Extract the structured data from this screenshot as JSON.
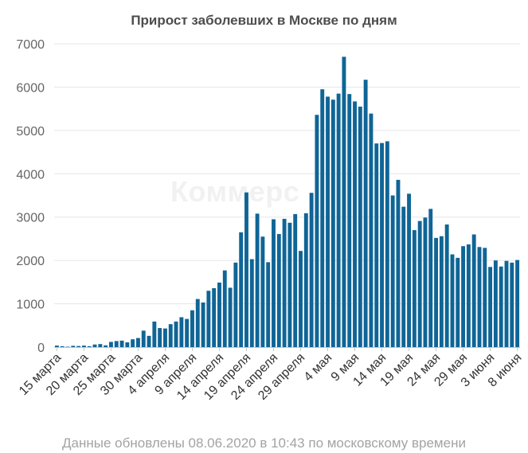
{
  "chart_data": {
    "type": "bar",
    "title": "Прирост заболевших в Москве по дням",
    "footer": "Данные обновлены 08.06.2020 в 10:43 по московскому времени",
    "watermark": "Коммерс",
    "ylim": [
      0,
      7000
    ],
    "yticks": [
      0,
      1000,
      2000,
      3000,
      4000,
      5000,
      6000,
      7000
    ],
    "grid": true,
    "bar_color": "#0f6596",
    "x_labels": [
      {
        "index": 0,
        "label": "15 марта"
      },
      {
        "index": 5,
        "label": "20 марта"
      },
      {
        "index": 10,
        "label": "25 марта"
      },
      {
        "index": 15,
        "label": "30 марта"
      },
      {
        "index": 20,
        "label": "4 апреля"
      },
      {
        "index": 25,
        "label": "9 апреля"
      },
      {
        "index": 30,
        "label": "14 апреля"
      },
      {
        "index": 35,
        "label": "19 апреля"
      },
      {
        "index": 40,
        "label": "24 апреля"
      },
      {
        "index": 45,
        "label": "29 апреля"
      },
      {
        "index": 50,
        "label": "4 мая"
      },
      {
        "index": 55,
        "label": "9 мая"
      },
      {
        "index": 60,
        "label": "14 мая"
      },
      {
        "index": 65,
        "label": "19 мая"
      },
      {
        "index": 70,
        "label": "24 мая"
      },
      {
        "index": 75,
        "label": "29 мая"
      },
      {
        "index": 80,
        "label": "3 июня"
      },
      {
        "index": 85,
        "label": "8 июня"
      }
    ],
    "values": [
      35,
      20,
      10,
      30,
      25,
      35,
      20,
      60,
      70,
      40,
      120,
      140,
      150,
      110,
      180,
      210,
      380,
      260,
      590,
      440,
      430,
      530,
      590,
      690,
      650,
      850,
      1110,
      1030,
      1300,
      1360,
      1490,
      1770,
      1370,
      1950,
      2650,
      3570,
      2030,
      3080,
      2550,
      1960,
      2950,
      2610,
      2960,
      2870,
      3070,
      2220,
      3090,
      3560,
      5360,
      5950,
      5780,
      5710,
      5850,
      6700,
      5840,
      5670,
      5550,
      6170,
      5390,
      4700,
      4710,
      4750,
      3500,
      3860,
      3240,
      3540,
      2700,
      2910,
      2990,
      3190,
      2520,
      2560,
      2830,
      2140,
      2060,
      2330,
      2370,
      2600,
      2310,
      2290,
      1850,
      2000,
      1860,
      1990,
      1950,
      2010
    ]
  }
}
